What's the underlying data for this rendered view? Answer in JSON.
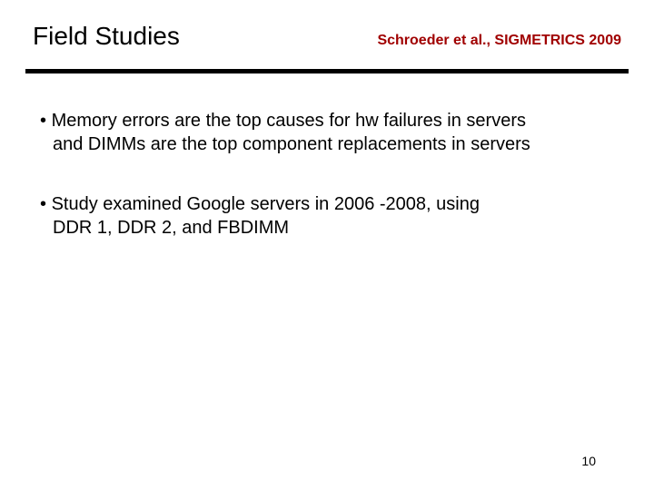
{
  "header": {
    "title": "Field Studies",
    "citation": "Schroeder et al., SIGMETRICS 2009"
  },
  "rule_color": "#000000",
  "citation_color": "#a00000",
  "body": {
    "bullets": [
      {
        "first": "Memory errors are the top causes for hw failures in servers",
        "rest": "and DIMMs are the top component replacements in servers"
      },
      {
        "first": "Study examined Google servers in 2006 -2008, using",
        "rest": "DDR 1, DDR 2, and FBDIMM"
      }
    ]
  },
  "page_number": "10",
  "fontsize": {
    "title": 28,
    "citation": 16,
    "body": 20,
    "pagenum": 14
  },
  "background_color": "#ffffff"
}
